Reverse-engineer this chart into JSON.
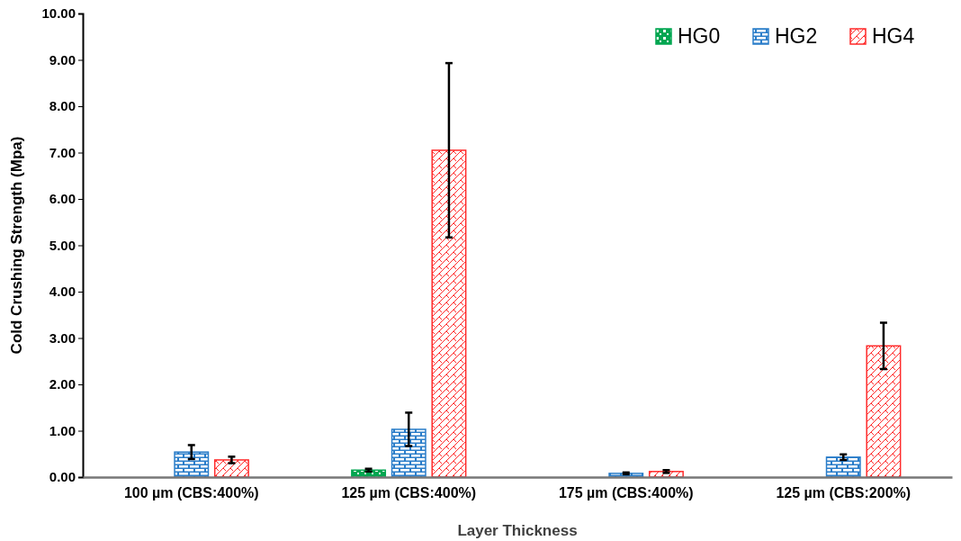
{
  "chart_data": {
    "type": "bar",
    "xlabel": "Layer Thickness",
    "ylabel": "Cold Crushing Strength (Mpa)",
    "categories": [
      "100 µm (CBS:400%)",
      "125 µm (CBS:400%)",
      "175 µm (CBS:400%)",
      "125 µm (CBS:200%)"
    ],
    "series": [
      {
        "name": "HG0",
        "color": "#00a651",
        "values": [
          null,
          0.15,
          null,
          null
        ],
        "errors": [
          null,
          0.03,
          null,
          null
        ]
      },
      {
        "name": "HG2",
        "color": "#2a7dc9",
        "values": [
          0.54,
          1.03,
          0.08,
          0.43
        ],
        "errors": [
          0.15,
          0.36,
          0.02,
          0.06
        ]
      },
      {
        "name": "HG4",
        "color": "#ff2a2a",
        "values": [
          0.37,
          7.05,
          0.12,
          2.83
        ],
        "errors": [
          0.07,
          1.88,
          0.03,
          0.5
        ]
      }
    ],
    "ylim": [
      0,
      10
    ],
    "yticks": [
      {
        "value": 0,
        "label": "0.00"
      },
      {
        "value": 1,
        "label": "1.00"
      },
      {
        "value": 2,
        "label": "2.00"
      },
      {
        "value": 3,
        "label": "3.00"
      },
      {
        "value": 4,
        "label": "4.00"
      },
      {
        "value": 5,
        "label": "5.00"
      },
      {
        "value": 6,
        "label": "6.00"
      },
      {
        "value": 7,
        "label": "7.00"
      },
      {
        "value": 8,
        "label": "8.00"
      },
      {
        "value": 9,
        "label": "9.00"
      },
      {
        "value": 10,
        "label": "10.00"
      }
    ],
    "legend": "top right",
    "grid": false
  }
}
